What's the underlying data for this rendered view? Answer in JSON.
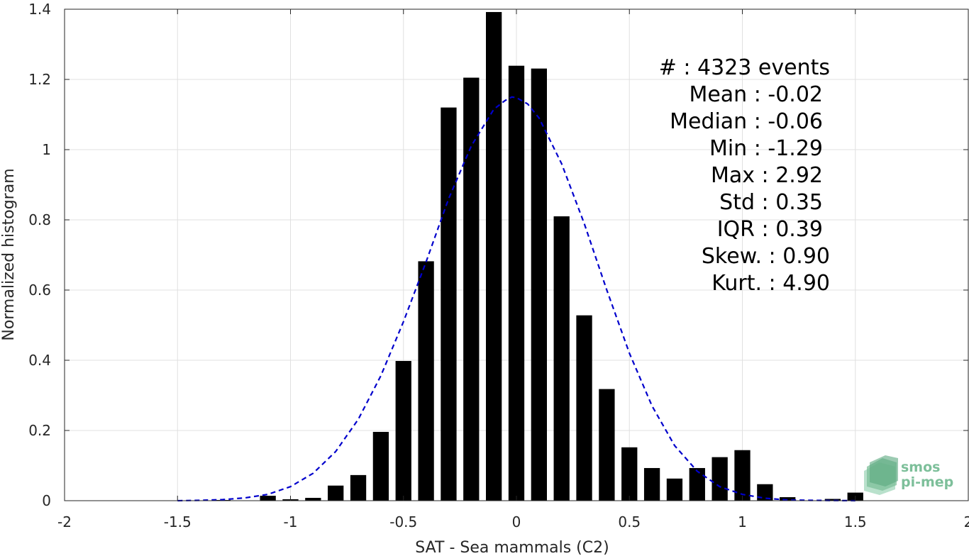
{
  "chart_data": {
    "type": "bar",
    "title": "",
    "xlabel": "SAT - Sea mammals (C2)",
    "ylabel": "Normalized histogram",
    "xlim": [
      -2,
      2
    ],
    "ylim": [
      0,
      1.4
    ],
    "grid": true,
    "x_ticks": [
      "-2",
      "-1.5",
      "-1",
      "-0.5",
      "0",
      "0.5",
      "1",
      "1.5",
      "2"
    ],
    "y_ticks": [
      "0",
      "0.2",
      "0.4",
      "0.6",
      "0.8",
      "1",
      "1.2",
      "1.4"
    ],
    "bar_width": 0.07,
    "bars": [
      {
        "x": -1.3,
        "y": 0.002
      },
      {
        "x": -1.1,
        "y": 0.014
      },
      {
        "x": -1.0,
        "y": 0.004
      },
      {
        "x": -0.9,
        "y": 0.008
      },
      {
        "x": -0.8,
        "y": 0.043
      },
      {
        "x": -0.7,
        "y": 0.073
      },
      {
        "x": -0.6,
        "y": 0.196
      },
      {
        "x": -0.5,
        "y": 0.398
      },
      {
        "x": -0.4,
        "y": 0.682
      },
      {
        "x": -0.3,
        "y": 1.12
      },
      {
        "x": -0.2,
        "y": 1.205
      },
      {
        "x": -0.1,
        "y": 1.392
      },
      {
        "x": 0.0,
        "y": 1.239
      },
      {
        "x": 0.1,
        "y": 1.231
      },
      {
        "x": 0.2,
        "y": 0.81
      },
      {
        "x": 0.3,
        "y": 0.528
      },
      {
        "x": 0.4,
        "y": 0.318
      },
      {
        "x": 0.5,
        "y": 0.152
      },
      {
        "x": 0.6,
        "y": 0.093
      },
      {
        "x": 0.7,
        "y": 0.063
      },
      {
        "x": 0.8,
        "y": 0.093
      },
      {
        "x": 0.9,
        "y": 0.124
      },
      {
        "x": 1.0,
        "y": 0.144
      },
      {
        "x": 1.1,
        "y": 0.047
      },
      {
        "x": 1.2,
        "y": 0.01
      },
      {
        "x": 1.4,
        "y": 0.005
      },
      {
        "x": 1.5,
        "y": 0.023
      }
    ],
    "fit_curve": {
      "style": "dashed",
      "color": "#0000cc",
      "points": [
        [
          -1.5,
          0.0
        ],
        [
          -1.4,
          0.001
        ],
        [
          -1.3,
          0.003
        ],
        [
          -1.2,
          0.008
        ],
        [
          -1.1,
          0.018
        ],
        [
          -1.0,
          0.04
        ],
        [
          -0.9,
          0.078
        ],
        [
          -0.8,
          0.14
        ],
        [
          -0.7,
          0.232
        ],
        [
          -0.6,
          0.356
        ],
        [
          -0.5,
          0.51
        ],
        [
          -0.4,
          0.68
        ],
        [
          -0.3,
          0.86
        ],
        [
          -0.2,
          1.01
        ],
        [
          -0.1,
          1.115
        ],
        [
          -0.05,
          1.14
        ],
        [
          -0.02,
          1.15
        ],
        [
          0.0,
          1.148
        ],
        [
          0.05,
          1.13
        ],
        [
          0.1,
          1.09
        ],
        [
          0.2,
          0.96
        ],
        [
          0.3,
          0.79
        ],
        [
          0.4,
          0.6
        ],
        [
          0.5,
          0.42
        ],
        [
          0.6,
          0.27
        ],
        [
          0.7,
          0.157
        ],
        [
          0.8,
          0.084
        ],
        [
          0.9,
          0.04
        ],
        [
          1.0,
          0.018
        ],
        [
          1.1,
          0.007
        ],
        [
          1.2,
          0.002
        ],
        [
          1.3,
          0.001
        ],
        [
          1.5,
          0.0
        ]
      ]
    },
    "stats": [
      {
        "label": "#  : 4323 events"
      },
      {
        "label": "Mean : -0.02"
      },
      {
        "label": "Median : -0.06"
      },
      {
        "label": "Min : -1.29"
      },
      {
        "label": "Max : 2.92"
      },
      {
        "label": "Std : 0.35"
      },
      {
        "label": "IQR : 0.39"
      },
      {
        "label": "Skew. : 0.90"
      },
      {
        "label": "Kurt. : 4.90"
      }
    ],
    "logo": {
      "line1": "smos",
      "line2": "pi-mep",
      "color": "#7dbf9a"
    },
    "colors": {
      "bars": "#000000",
      "grid": "#e0e0e0",
      "axis": "#262626"
    }
  }
}
